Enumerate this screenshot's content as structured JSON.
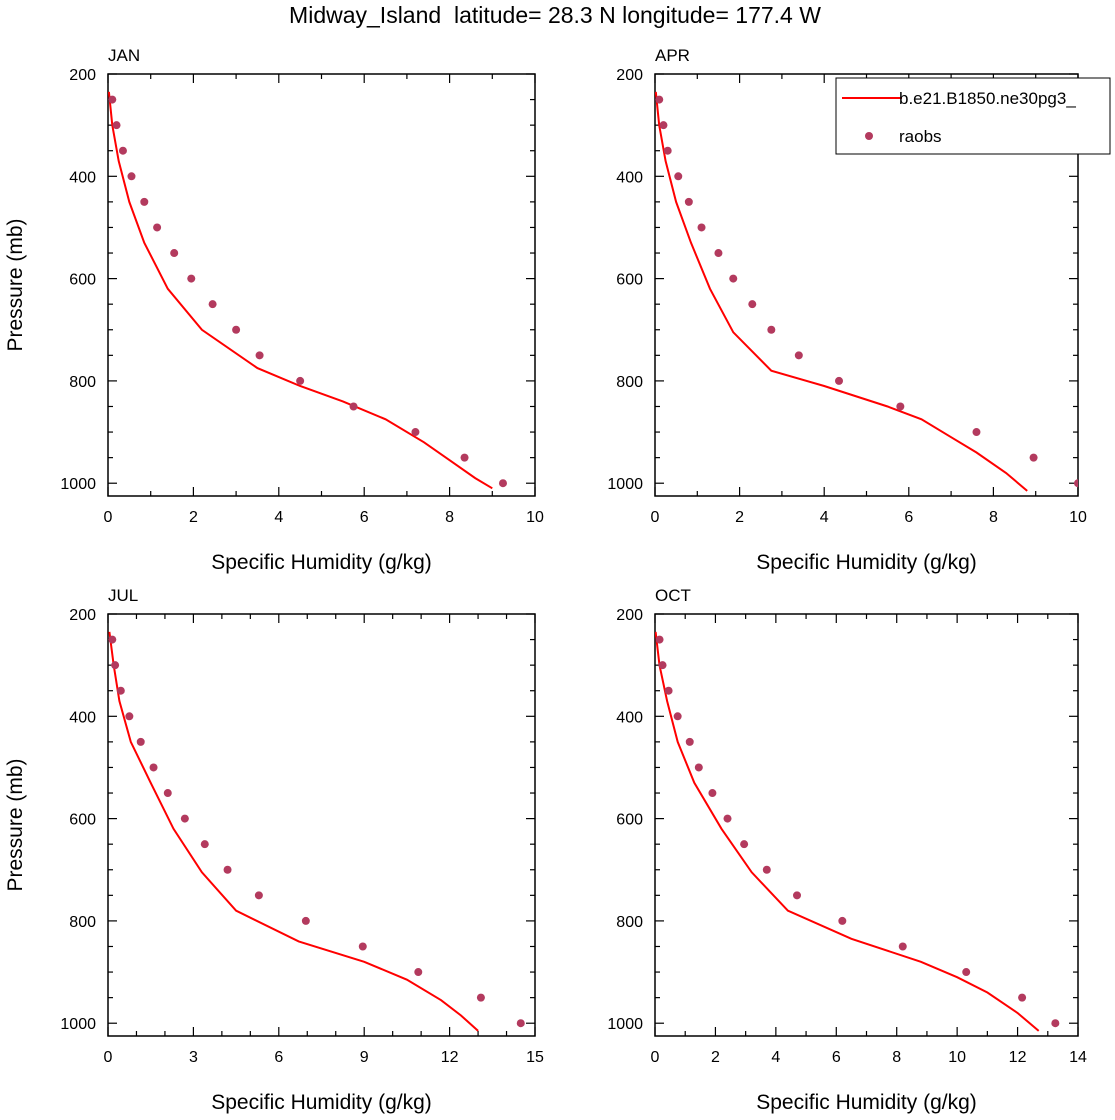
{
  "title": "Midway_Island  latitude= 28.3 N longitude= 177.4 W",
  "colors": {
    "model": "#ff0000",
    "obs": "#b33a5e",
    "axis": "#000000"
  },
  "legend": {
    "placement": "top-right of APR panel",
    "entries": [
      "b.e21.B1850.ne30pg3_",
      "raobs"
    ]
  },
  "chart_data": [
    {
      "type": "line",
      "panel_label": "JAN",
      "xlabel": "Specific Humidity (g/kg)",
      "ylabel": "Pressure (mb)",
      "xlim": [
        0,
        10
      ],
      "ylim": [
        200,
        1025
      ],
      "y_inverted": true,
      "xticks": [
        0,
        2,
        4,
        6,
        8,
        10
      ],
      "yticks": [
        200,
        400,
        600,
        800,
        1000
      ],
      "series": [
        {
          "name": "b.e21.B1850.ne30pg3_",
          "kind": "line",
          "x": [
            0.02,
            0.1,
            0.25,
            0.5,
            0.85,
            1.4,
            2.2,
            3.5,
            4.5,
            5.5,
            6.5,
            7.4,
            8.0,
            8.6,
            9.0
          ],
          "y": [
            235,
            300,
            370,
            450,
            530,
            620,
            700,
            775,
            810,
            840,
            875,
            920,
            955,
            990,
            1010
          ]
        },
        {
          "name": "raobs",
          "kind": "scatter",
          "x": [
            0.1,
            0.2,
            0.35,
            0.55,
            0.85,
            1.15,
            1.55,
            1.95,
            2.45,
            3.0,
            3.55,
            4.5,
            5.75,
            7.2,
            8.35,
            9.25
          ],
          "y": [
            250,
            300,
            350,
            400,
            450,
            500,
            550,
            600,
            650,
            700,
            750,
            800,
            850,
            900,
            950,
            1000
          ]
        }
      ]
    },
    {
      "type": "line",
      "panel_label": "APR",
      "xlabel": "Specific Humidity (g/kg)",
      "ylabel": "",
      "xlim": [
        0,
        10
      ],
      "ylim": [
        200,
        1025
      ],
      "y_inverted": true,
      "xticks": [
        0,
        2,
        4,
        6,
        8,
        10
      ],
      "yticks": [
        200,
        400,
        600,
        800,
        1000
      ],
      "series": [
        {
          "name": "b.e21.B1850.ne30pg3_",
          "kind": "line",
          "x": [
            0.02,
            0.1,
            0.25,
            0.5,
            0.85,
            1.3,
            1.85,
            2.75,
            4.0,
            5.5,
            6.3,
            7.0,
            7.6,
            8.3,
            8.8
          ],
          "y": [
            235,
            300,
            370,
            450,
            530,
            620,
            705,
            780,
            810,
            850,
            875,
            910,
            940,
            980,
            1015
          ]
        },
        {
          "name": "raobs",
          "kind": "scatter",
          "x": [
            0.1,
            0.2,
            0.3,
            0.55,
            0.8,
            1.1,
            1.5,
            1.85,
            2.3,
            2.75,
            3.4,
            4.35,
            5.8,
            7.6,
            8.95,
            10.0
          ],
          "y": [
            250,
            300,
            350,
            400,
            450,
            500,
            550,
            600,
            650,
            700,
            750,
            800,
            850,
            900,
            950,
            1000
          ]
        }
      ]
    },
    {
      "type": "line",
      "panel_label": "JUL",
      "xlabel": "Specific Humidity (g/kg)",
      "ylabel": "Pressure (mb)",
      "xlim": [
        0,
        15
      ],
      "ylim": [
        200,
        1025
      ],
      "y_inverted": true,
      "xticks": [
        0,
        3,
        6,
        9,
        12,
        15
      ],
      "yticks": [
        200,
        400,
        600,
        800,
        1000
      ],
      "series": [
        {
          "name": "b.e21.B1850.ne30pg3_",
          "kind": "line",
          "x": [
            0.05,
            0.2,
            0.4,
            0.8,
            1.5,
            2.3,
            3.3,
            4.5,
            6.7,
            9.0,
            10.5,
            11.7,
            12.4,
            13.0
          ],
          "y": [
            235,
            300,
            370,
            450,
            530,
            620,
            705,
            780,
            840,
            880,
            915,
            955,
            985,
            1015
          ]
        },
        {
          "name": "raobs",
          "kind": "scatter",
          "x": [
            0.15,
            0.25,
            0.45,
            0.75,
            1.15,
            1.6,
            2.1,
            2.7,
            3.4,
            4.2,
            5.3,
            6.95,
            8.95,
            10.9,
            13.1,
            14.5
          ],
          "y": [
            250,
            300,
            350,
            400,
            450,
            500,
            550,
            600,
            650,
            700,
            750,
            800,
            850,
            900,
            950,
            1000
          ]
        }
      ]
    },
    {
      "type": "line",
      "panel_label": "OCT",
      "xlabel": "Specific Humidity (g/kg)",
      "ylabel": "",
      "xlim": [
        0,
        14
      ],
      "ylim": [
        200,
        1025
      ],
      "y_inverted": true,
      "xticks": [
        0,
        2,
        4,
        6,
        8,
        10,
        12,
        14
      ],
      "yticks": [
        200,
        400,
        600,
        800,
        1000
      ],
      "series": [
        {
          "name": "b.e21.B1850.ne30pg3_",
          "kind": "line",
          "x": [
            0.02,
            0.15,
            0.4,
            0.75,
            1.3,
            2.2,
            3.2,
            4.4,
            6.5,
            8.8,
            10.0,
            11.0,
            12.0,
            12.7
          ],
          "y": [
            235,
            300,
            370,
            450,
            530,
            620,
            705,
            780,
            835,
            880,
            910,
            940,
            980,
            1015
          ]
        },
        {
          "name": "raobs",
          "kind": "scatter",
          "x": [
            0.15,
            0.25,
            0.45,
            0.75,
            1.15,
            1.45,
            1.9,
            2.4,
            2.95,
            3.7,
            4.7,
            6.2,
            8.2,
            10.3,
            12.15,
            13.25
          ],
          "y": [
            250,
            300,
            350,
            400,
            450,
            500,
            550,
            600,
            650,
            700,
            750,
            800,
            850,
            900,
            950,
            1000
          ]
        }
      ]
    }
  ]
}
